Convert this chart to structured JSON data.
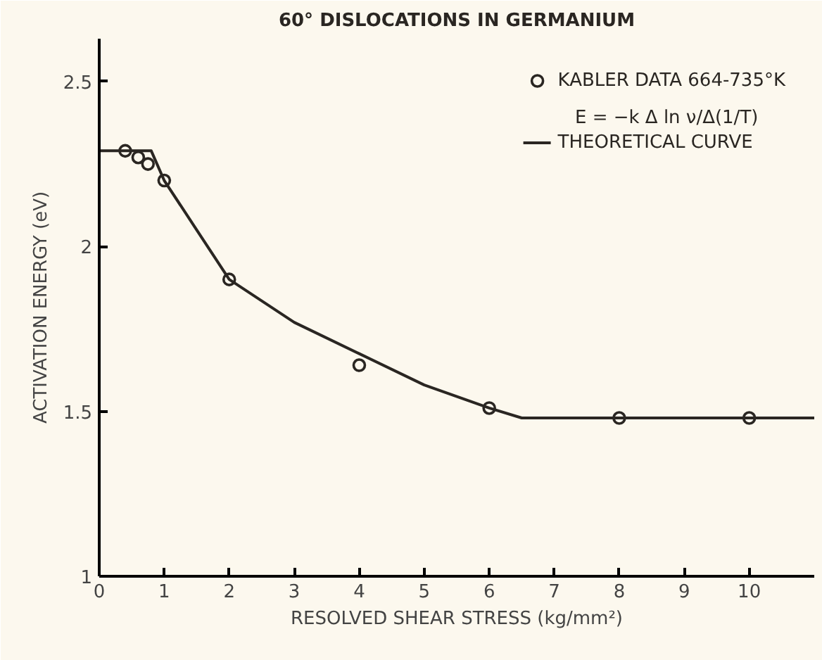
{
  "chart_data": {
    "type": "scatter",
    "title": "60° DISLOCATIONS IN GERMANIUM",
    "xlabel": "RESOLVED SHEAR STRESS (kg/mm²)",
    "ylabel": "ACTIVATION ENERGY (eV)",
    "annotations": [
      "E = −k Δ ln ν/Δ(1/T)"
    ],
    "series": [
      {
        "name": "KABLER DATA 664-735°K",
        "type": "scatter",
        "marker": "circle",
        "color": "#2a2622",
        "x": [
          0.4,
          0.6,
          0.75,
          1.0,
          2,
          4,
          6,
          8,
          10
        ],
        "values": [
          2.29,
          2.27,
          2.25,
          2.2,
          1.9,
          1.64,
          1.51,
          1.48,
          1.48
        ]
      },
      {
        "name": "THEORETICAL CURVE",
        "type": "line",
        "line_style": "solid",
        "color": "#2a2622",
        "x": [
          0,
          0.8,
          1,
          1.5,
          2,
          3,
          4,
          5,
          6,
          6.5,
          11
        ],
        "values": [
          2.29,
          2.29,
          2.2,
          2.05,
          1.9,
          1.77,
          1.675,
          1.58,
          1.51,
          1.48,
          1.48
        ]
      }
    ],
    "xlim": [
      0,
      11
    ],
    "ylim": [
      1,
      2.63
    ],
    "xticks": [
      0,
      1,
      2,
      3,
      4,
      5,
      6,
      7,
      8,
      9,
      10
    ],
    "yticks": [
      1,
      1.5,
      2,
      2.5
    ],
    "grid": false,
    "legend": "top right"
  }
}
